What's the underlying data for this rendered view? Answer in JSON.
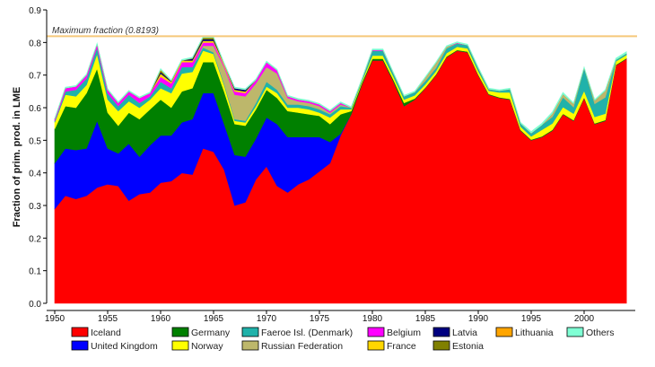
{
  "chart_data": {
    "type": "area",
    "stacked": true,
    "title": "",
    "xlabel": "",
    "ylabel": "Fraction of prim. prod. in LME",
    "xlim": [
      1950,
      2004
    ],
    "ylim": [
      0,
      0.9
    ],
    "yticks": [
      "0.0",
      "0.1",
      "0.2",
      "0.3",
      "0.4",
      "0.5",
      "0.6",
      "0.7",
      "0.8",
      "0.9"
    ],
    "xticks": [
      "1950",
      "1955",
      "1960",
      "1965",
      "1970",
      "1975",
      "1980",
      "1985",
      "1990",
      "1995",
      "2000"
    ],
    "reference_line": {
      "value": 0.8193,
      "label": "Maximum fraction (0.8193)",
      "color": "#f5c87a"
    },
    "legend_position": "bottom",
    "x": [
      1950,
      1951,
      1952,
      1953,
      1954,
      1955,
      1956,
      1957,
      1958,
      1959,
      1960,
      1961,
      1962,
      1963,
      1964,
      1965,
      1966,
      1967,
      1968,
      1969,
      1970,
      1971,
      1972,
      1973,
      1974,
      1975,
      1976,
      1977,
      1978,
      1979,
      1980,
      1981,
      1982,
      1983,
      1984,
      1985,
      1986,
      1987,
      1988,
      1989,
      1990,
      1991,
      1992,
      1993,
      1994,
      1995,
      1996,
      1997,
      1998,
      1999,
      2000,
      2001,
      2002,
      2003,
      2004
    ],
    "series": [
      {
        "name": "Iceland",
        "color": "#ff0000",
        "values": [
          0.29,
          0.33,
          0.32,
          0.33,
          0.355,
          0.365,
          0.36,
          0.315,
          0.335,
          0.34,
          0.37,
          0.375,
          0.4,
          0.395,
          0.475,
          0.465,
          0.41,
          0.3,
          0.31,
          0.38,
          0.42,
          0.36,
          0.34,
          0.365,
          0.38,
          0.405,
          0.43,
          0.515,
          0.58,
          0.67,
          0.745,
          0.745,
          0.68,
          0.605,
          0.625,
          0.66,
          0.7,
          0.755,
          0.775,
          0.77,
          0.7,
          0.64,
          0.63,
          0.625,
          0.53,
          0.5,
          0.51,
          0.53,
          0.58,
          0.56,
          0.63,
          0.55,
          0.56,
          0.73,
          0.75
        ]
      },
      {
        "name": "United Kingdom",
        "color": "#0000ff",
        "values": [
          0.14,
          0.145,
          0.15,
          0.145,
          0.205,
          0.11,
          0.1,
          0.175,
          0.115,
          0.145,
          0.145,
          0.14,
          0.155,
          0.17,
          0.17,
          0.18,
          0.14,
          0.155,
          0.14,
          0.125,
          0.15,
          0.19,
          0.17,
          0.145,
          0.13,
          0.105,
          0.065,
          0.005,
          0,
          0,
          0,
          0,
          0,
          0,
          0,
          0,
          0,
          0,
          0,
          0,
          0,
          0,
          0,
          0,
          0,
          0,
          0,
          0,
          0,
          0,
          0,
          0,
          0,
          0,
          0
        ]
      },
      {
        "name": "Germany",
        "color": "#008000",
        "values": [
          0.105,
          0.13,
          0.13,
          0.17,
          0.16,
          0.11,
          0.085,
          0.095,
          0.115,
          0.11,
          0.11,
          0.085,
          0.095,
          0.095,
          0.095,
          0.095,
          0.1,
          0.095,
          0.095,
          0.09,
          0.085,
          0.08,
          0.08,
          0.075,
          0.07,
          0.065,
          0.055,
          0.06,
          0.01,
          0.005,
          0.005,
          0.005,
          0.005,
          0.01,
          0.003,
          0.002,
          0.002,
          0.002,
          0.002,
          0.002,
          0.002,
          0.002,
          0.002,
          0.002,
          0.002,
          0.002,
          0.002,
          0.002,
          0.002,
          0.002,
          0.002,
          0.002,
          0.002,
          0.002,
          0.002
        ]
      },
      {
        "name": "Norway",
        "color": "#ffff00",
        "values": [
          0.02,
          0.035,
          0.035,
          0.025,
          0.045,
          0.04,
          0.045,
          0.035,
          0.035,
          0.03,
          0.035,
          0.045,
          0.055,
          0.05,
          0.035,
          0.025,
          0.02,
          0.01,
          0.01,
          0.01,
          0.01,
          0.015,
          0.01,
          0.015,
          0.015,
          0.01,
          0.02,
          0.015,
          0.005,
          0.005,
          0.01,
          0.01,
          0.01,
          0.01,
          0.01,
          0.01,
          0.01,
          0.01,
          0.01,
          0.01,
          0.01,
          0.01,
          0.015,
          0.02,
          0.01,
          0.01,
          0.02,
          0.02,
          0.02,
          0.02,
          0.02,
          0.02,
          0.02,
          0.01,
          0.01
        ]
      },
      {
        "name": "Faeroe Isl. (Denmark)",
        "color": "#20b2aa",
        "values": [
          0.005,
          0.01,
          0.02,
          0.02,
          0.02,
          0.02,
          0.015,
          0.02,
          0.015,
          0.01,
          0.02,
          0.015,
          0.02,
          0.015,
          0.01,
          0.005,
          0.005,
          0.005,
          0.005,
          0.01,
          0.015,
          0.01,
          0.01,
          0.01,
          0.01,
          0.01,
          0.01,
          0.01,
          0.005,
          0.005,
          0.015,
          0.015,
          0.01,
          0.01,
          0.01,
          0.01,
          0.01,
          0.015,
          0.01,
          0.01,
          0.01,
          0.005,
          0.005,
          0.01,
          0.01,
          0.01,
          0.015,
          0.02,
          0.03,
          0.02,
          0.07,
          0.04,
          0.05,
          0.005,
          0.005
        ]
      },
      {
        "name": "Russian Federation",
        "color": "#bdb76b",
        "values": [
          0,
          0,
          0,
          0,
          0,
          0,
          0,
          0,
          0,
          0,
          0,
          0,
          0,
          0,
          0.005,
          0.02,
          0.05,
          0.075,
          0.075,
          0.06,
          0.045,
          0.05,
          0.02,
          0.01,
          0.01,
          0.01,
          0.005,
          0.005,
          0,
          0,
          0,
          0,
          0,
          0,
          0,
          0.01,
          0.015,
          0.005,
          0,
          0,
          0,
          0,
          0,
          0,
          0,
          0,
          0,
          0.01,
          0.01,
          0.01,
          0,
          0.01,
          0.02,
          0,
          0
        ]
      },
      {
        "name": "Belgium",
        "color": "#ff00ff",
        "values": [
          0.005,
          0.01,
          0.01,
          0.01,
          0.01,
          0.01,
          0.01,
          0.01,
          0.015,
          0.01,
          0.015,
          0.015,
          0.015,
          0.015,
          0.01,
          0.01,
          0.005,
          0.01,
          0.01,
          0.01,
          0.015,
          0.01,
          0.005,
          0.005,
          0.005,
          0.005,
          0.005,
          0.005,
          0,
          0,
          0.002,
          0.002,
          0,
          0,
          0,
          0,
          0,
          0,
          0.002,
          0,
          0,
          0,
          0,
          0,
          0,
          0,
          0,
          0,
          0,
          0,
          0,
          0,
          0,
          0,
          0
        ]
      },
      {
        "name": "France",
        "color": "#ffd700",
        "values": [
          0,
          0,
          0,
          0,
          0,
          0,
          0,
          0,
          0,
          0,
          0.01,
          0.005,
          0.005,
          0.005,
          0.005,
          0.005,
          0.005,
          0.005,
          0.005,
          0,
          0,
          0,
          0,
          0,
          0,
          0,
          0,
          0,
          0,
          0,
          0,
          0,
          0,
          0,
          0,
          0,
          0,
          0,
          0,
          0,
          0,
          0,
          0,
          0,
          0,
          0,
          0,
          0,
          0,
          0,
          0,
          0,
          0,
          0,
          0
        ]
      },
      {
        "name": "Latvia",
        "color": "#000080",
        "values": [
          0,
          0,
          0,
          0,
          0,
          0,
          0,
          0,
          0,
          0,
          0.005,
          0.002,
          0,
          0.005,
          0.005,
          0.005,
          0,
          0.005,
          0.005,
          0,
          0,
          0,
          0,
          0,
          0,
          0,
          0,
          0,
          0,
          0,
          0,
          0,
          0,
          0,
          0,
          0,
          0,
          0,
          0,
          0,
          0,
          0,
          0,
          0,
          0,
          0,
          0,
          0,
          0,
          0,
          0,
          0,
          0,
          0,
          0
        ]
      },
      {
        "name": "Estonia",
        "color": "#808000",
        "values": [
          0,
          0,
          0,
          0,
          0,
          0,
          0,
          0,
          0,
          0,
          0.005,
          0,
          0,
          0.002,
          0.005,
          0.005,
          0,
          0,
          0,
          0,
          0,
          0,
          0,
          0,
          0,
          0,
          0,
          0,
          0,
          0,
          0,
          0,
          0,
          0,
          0,
          0,
          0,
          0,
          0,
          0,
          0,
          0,
          0,
          0,
          0,
          0,
          0,
          0,
          0,
          0,
          0,
          0,
          0,
          0,
          0
        ]
      },
      {
        "name": "Lithuania",
        "color": "#ffa500",
        "values": [
          0,
          0,
          0,
          0,
          0,
          0,
          0,
          0,
          0,
          0,
          0.002,
          0,
          0,
          0,
          0,
          0,
          0,
          0,
          0,
          0,
          0,
          0,
          0,
          0,
          0,
          0,
          0,
          0,
          0,
          0,
          0,
          0,
          0,
          0,
          0,
          0,
          0,
          0,
          0,
          0,
          0,
          0,
          0,
          0,
          0,
          0,
          0,
          0,
          0,
          0,
          0,
          0,
          0,
          0,
          0
        ]
      },
      {
        "name": "Others",
        "color": "#7fffd4",
        "values": [
          0.003,
          0.003,
          0.003,
          0.003,
          0.003,
          0.003,
          0.003,
          0.003,
          0.003,
          0.003,
          0.003,
          0.003,
          0.003,
          0.003,
          0.003,
          0.003,
          0.003,
          0.003,
          0.003,
          0.003,
          0.003,
          0.003,
          0.003,
          0.003,
          0.003,
          0.003,
          0.003,
          0.003,
          0.003,
          0.003,
          0.003,
          0.003,
          0.003,
          0.003,
          0.003,
          0.003,
          0.003,
          0.003,
          0.003,
          0.003,
          0.003,
          0.003,
          0.003,
          0.003,
          0.003,
          0.005,
          0.005,
          0.005,
          0.005,
          0.003,
          0.003,
          0.003,
          0.003,
          0.005,
          0.005
        ]
      }
    ],
    "legend_order": [
      "Iceland",
      "Germany",
      "Faeroe Isl. (Denmark)",
      "Belgium",
      "Latvia",
      "Lithuania",
      "Others",
      "United Kingdom",
      "Norway",
      "Russian Federation",
      "France",
      "Estonia"
    ]
  }
}
